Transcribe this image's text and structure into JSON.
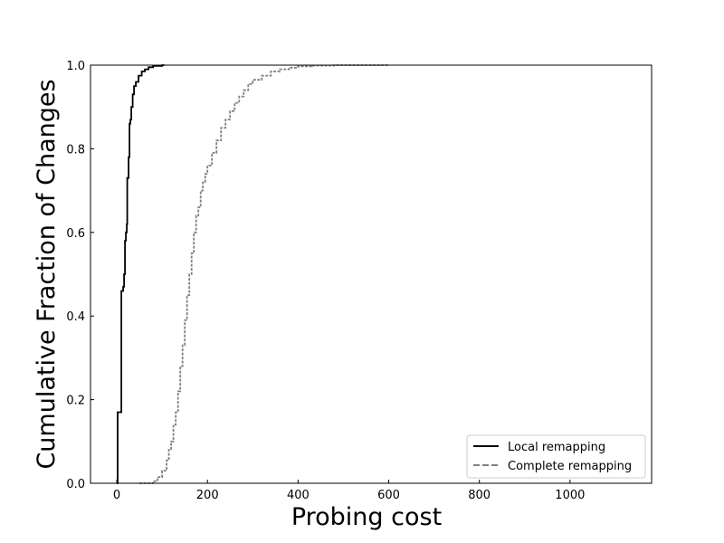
{
  "chart_data": {
    "type": "line",
    "step": true,
    "xlabel": "Probing cost",
    "ylabel": "Cumulative Fraction of Changes",
    "xlim": [
      -58,
      1180
    ],
    "ylim": [
      0,
      1
    ],
    "xticks": [
      0,
      200,
      400,
      600,
      800,
      1000
    ],
    "yticks": [
      0.0,
      0.2,
      0.4,
      0.6,
      0.8,
      1.0
    ],
    "tick_labels_x": [
      "0",
      "200",
      "400",
      "600",
      "800",
      "1000"
    ],
    "tick_labels_y": [
      "0.0",
      "0.2",
      "0.4",
      "0.6",
      "0.8",
      "1.0"
    ],
    "grid": false,
    "legend_position": "lower-right",
    "series": [
      {
        "name": "Local remapping",
        "color": "#000000",
        "style": "solid",
        "points": [
          [
            0,
            0.0
          ],
          [
            2,
            0.17
          ],
          [
            10,
            0.17
          ],
          [
            10,
            0.46
          ],
          [
            14,
            0.47
          ],
          [
            16,
            0.5
          ],
          [
            18,
            0.5
          ],
          [
            18,
            0.58
          ],
          [
            20,
            0.6
          ],
          [
            22,
            0.62
          ],
          [
            23,
            0.73
          ],
          [
            26,
            0.74
          ],
          [
            26,
            0.78
          ],
          [
            28,
            0.86
          ],
          [
            30,
            0.87
          ],
          [
            32,
            0.9
          ],
          [
            35,
            0.93
          ],
          [
            38,
            0.95
          ],
          [
            42,
            0.96
          ],
          [
            48,
            0.975
          ],
          [
            55,
            0.985
          ],
          [
            62,
            0.99
          ],
          [
            70,
            0.995
          ],
          [
            80,
            0.998
          ],
          [
            100,
            1.0
          ],
          [
            105,
            1.0
          ]
        ]
      },
      {
        "name": "Complete remapping",
        "color": "#808080",
        "style": "dashed",
        "points": [
          [
            50,
            0.0
          ],
          [
            70,
            0.0
          ],
          [
            80,
            0.005
          ],
          [
            90,
            0.015
          ],
          [
            100,
            0.03
          ],
          [
            110,
            0.055
          ],
          [
            115,
            0.08
          ],
          [
            120,
            0.1
          ],
          [
            125,
            0.14
          ],
          [
            130,
            0.17
          ],
          [
            135,
            0.22
          ],
          [
            140,
            0.28
          ],
          [
            145,
            0.33
          ],
          [
            150,
            0.39
          ],
          [
            155,
            0.45
          ],
          [
            160,
            0.5
          ],
          [
            165,
            0.55
          ],
          [
            170,
            0.6
          ],
          [
            175,
            0.64
          ],
          [
            180,
            0.66
          ],
          [
            185,
            0.7
          ],
          [
            190,
            0.72
          ],
          [
            195,
            0.74
          ],
          [
            200,
            0.76
          ],
          [
            210,
            0.79
          ],
          [
            220,
            0.82
          ],
          [
            230,
            0.85
          ],
          [
            240,
            0.87
          ],
          [
            250,
            0.89
          ],
          [
            260,
            0.91
          ],
          [
            270,
            0.925
          ],
          [
            280,
            0.94
          ],
          [
            290,
            0.955
          ],
          [
            300,
            0.965
          ],
          [
            320,
            0.975
          ],
          [
            340,
            0.985
          ],
          [
            360,
            0.99
          ],
          [
            380,
            0.994
          ],
          [
            400,
            0.997
          ],
          [
            430,
            0.999
          ],
          [
            480,
            1.0
          ],
          [
            600,
            1.0
          ]
        ]
      }
    ]
  }
}
